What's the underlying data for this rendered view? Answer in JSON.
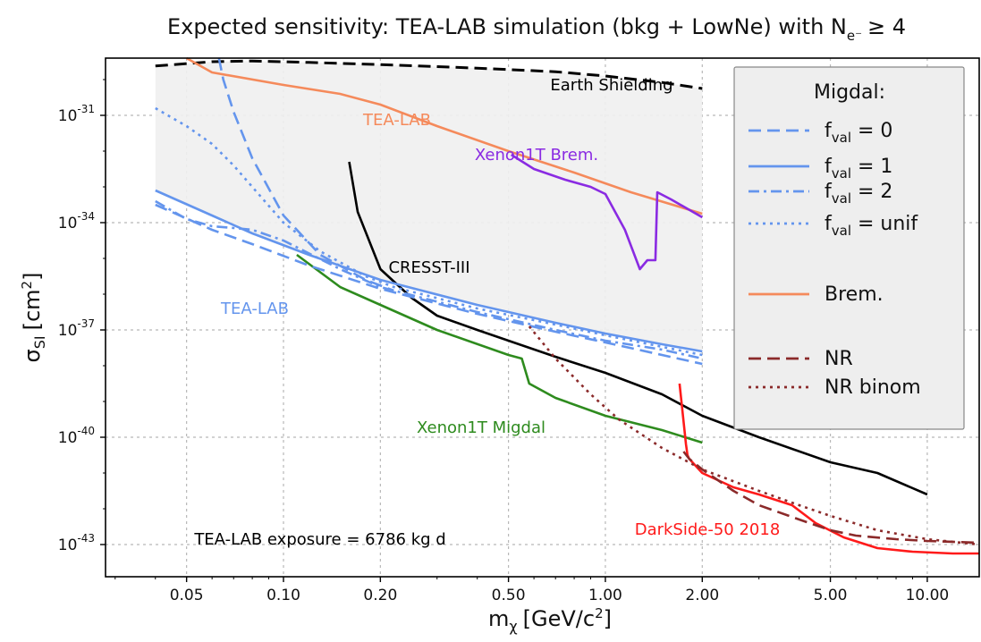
{
  "chart_data": {
    "type": "line",
    "title": "Expected sensitivity: TEA-LAB simulation (bkg + LowNe) with N",
    "title_subscript": "e⁻",
    "title_suffix": "≥ 4",
    "xlabel": "m",
    "xlabel_subscript": "χ",
    "xlabel_unit": "[GeV/c",
    "xlabel_unit_sup": "2",
    "xlabel_unit_close": "]",
    "ylabel": "σ",
    "ylabel_subscript": "SI",
    "ylabel_unit": "[cm",
    "ylabel_unit_sup": "2",
    "ylabel_unit_close": "]",
    "x_scale": "log",
    "y_scale": "log",
    "xlim": [
      0.028,
      14.5
    ],
    "ylim_log10": [
      -43.9,
      -29.4
    ],
    "grid": true,
    "x_ticks": [
      {
        "value": 0.05,
        "label": "0.05"
      },
      {
        "value": 0.1,
        "label": "0.10"
      },
      {
        "value": 0.2,
        "label": "0.20"
      },
      {
        "value": 0.5,
        "label": "0.50"
      },
      {
        "value": 1.0,
        "label": "1.00"
      },
      {
        "value": 2.0,
        "label": "2.00"
      },
      {
        "value": 5.0,
        "label": "5.00"
      },
      {
        "value": 10.0,
        "label": "10.00"
      }
    ],
    "y_ticks": [
      {
        "log10": -31,
        "base": "10",
        "exp": "-31"
      },
      {
        "log10": -34,
        "base": "10",
        "exp": "-34"
      },
      {
        "log10": -37,
        "base": "10",
        "exp": "-37"
      },
      {
        "log10": -40,
        "base": "10",
        "exp": "-40"
      },
      {
        "log10": -43,
        "base": "10",
        "exp": "-43"
      }
    ],
    "shaded_region": {
      "x": [
        0.04,
        2.0
      ],
      "upper_log10": [
        -29.6,
        -30.25
      ],
      "lower_series": "TEA-LAB Migdal fval=1"
    },
    "series": [
      {
        "id": "earth",
        "color": "#000000",
        "dash": "dashed",
        "x": [
          0.04,
          0.06,
          0.08,
          0.12,
          0.2,
          0.4,
          0.7,
          1.0,
          1.5,
          2.0
        ],
        "log10y": [
          -29.62,
          -29.5,
          -29.48,
          -29.52,
          -29.58,
          -29.68,
          -29.78,
          -29.9,
          -30.08,
          -30.25
        ]
      },
      {
        "id": "tealab-brem",
        "color": "#f58a5b",
        "dash": "solid",
        "x": [
          0.05,
          0.06,
          0.1,
          0.15,
          0.2,
          0.3,
          0.5,
          0.8,
          1.2,
          2.0
        ],
        "log10y": [
          -29.4,
          -29.8,
          -30.15,
          -30.4,
          -30.7,
          -31.3,
          -32.0,
          -32.6,
          -33.15,
          -33.75
        ]
      },
      {
        "id": "xenon1t-brem",
        "color": "#8a2be2",
        "dash": "solid",
        "x": [
          0.51,
          0.6,
          0.75,
          0.9,
          1.0,
          1.15,
          1.28,
          1.35,
          1.43,
          1.45,
          1.6,
          2.0
        ],
        "log10y": [
          -32.1,
          -32.5,
          -32.8,
          -33.0,
          -33.2,
          -34.2,
          -35.3,
          -35.05,
          -35.05,
          -33.15,
          -33.35,
          -33.85
        ]
      },
      {
        "id": "cresst",
        "color": "#000000",
        "dash": "solid",
        "x": [
          0.16,
          0.17,
          0.2,
          0.25,
          0.3,
          0.4,
          0.5,
          0.7,
          1.0,
          1.5,
          2.0,
          3.0,
          5.0,
          7.0,
          10.0
        ],
        "log10y": [
          -32.3,
          -33.7,
          -35.3,
          -36.1,
          -36.6,
          -37.0,
          -37.3,
          -37.75,
          -38.2,
          -38.8,
          -39.4,
          -40.0,
          -40.7,
          -41.0,
          -41.6
        ]
      },
      {
        "id": "xenon1t-migdal",
        "color": "#2e8b1e",
        "dash": "solid",
        "x": [
          0.11,
          0.15,
          0.2,
          0.3,
          0.5,
          0.55,
          0.58,
          0.7,
          1.0,
          1.5,
          2.0
        ],
        "log10y": [
          -34.9,
          -35.8,
          -36.3,
          -37.0,
          -37.7,
          -37.8,
          -38.5,
          -38.9,
          -39.4,
          -39.8,
          -40.15
        ]
      },
      {
        "id": "migdal-f1",
        "color": "#6495ed",
        "dash": "solid",
        "x": [
          0.04,
          0.06,
          0.08,
          0.12,
          0.2,
          0.4,
          0.7,
          1.0,
          1.5,
          2.0
        ],
        "log10y": [
          -33.1,
          -33.8,
          -34.3,
          -34.9,
          -35.6,
          -36.3,
          -36.8,
          -37.1,
          -37.4,
          -37.6
        ]
      },
      {
        "id": "migdal-f0",
        "color": "#6495ed",
        "dash": "dashed",
        "x": [
          0.04,
          0.06,
          0.08,
          0.12,
          0.2,
          0.4,
          0.7,
          1.0,
          1.5,
          2.0
        ],
        "log10y": [
          -33.5,
          -34.2,
          -34.6,
          -35.2,
          -35.85,
          -36.55,
          -37.05,
          -37.35,
          -37.7,
          -37.95
        ]
      },
      {
        "id": "migdal-f0-steep",
        "color": "#6495ed",
        "dash": "dashed",
        "x": [
          0.063,
          0.065,
          0.07,
          0.08,
          0.1,
          0.13,
          0.18,
          0.22
        ],
        "log10y": [
          -29.4,
          -30.0,
          -30.9,
          -32.2,
          -33.8,
          -34.9,
          -35.6,
          -35.9
        ]
      },
      {
        "id": "migdal-f2",
        "color": "#6495ed",
        "dash": "dashdot",
        "x": [
          0.04,
          0.05,
          0.06,
          0.07,
          0.08,
          0.1,
          0.15,
          0.2,
          0.4,
          0.7,
          1.0,
          1.5,
          2.0
        ],
        "log10y": [
          -33.4,
          -33.9,
          -34.1,
          -34.15,
          -34.2,
          -34.5,
          -35.3,
          -35.8,
          -36.5,
          -37.0,
          -37.3,
          -37.55,
          -37.8
        ]
      },
      {
        "id": "migdal-unif",
        "color": "#6495ed",
        "dash": "dotted",
        "x": [
          0.04,
          0.05,
          0.06,
          0.07,
          0.08,
          0.1,
          0.13,
          0.18,
          0.22,
          0.4,
          0.7,
          1.0,
          2.0
        ],
        "log10y": [
          -30.8,
          -31.3,
          -31.8,
          -32.4,
          -33.0,
          -34.0,
          -34.8,
          -35.5,
          -35.8,
          -36.4,
          -36.85,
          -37.15,
          -37.7
        ]
      },
      {
        "id": "darkside",
        "color": "#ff1a1a",
        "dash": "solid",
        "x": [
          1.7,
          1.78,
          1.8,
          1.82,
          2.0,
          2.5,
          3.0,
          3.8,
          4.5,
          5.5,
          7.0,
          9.0,
          12.0,
          14.5
        ],
        "log10y": [
          -38.5,
          -40.2,
          -40.5,
          -40.6,
          -41.0,
          -41.4,
          -41.6,
          -41.9,
          -42.4,
          -42.8,
          -43.1,
          -43.2,
          -43.25,
          -43.25
        ]
      },
      {
        "id": "nr",
        "color": "#8b2a2a",
        "dash": "dashed",
        "x": [
          1.75,
          1.82,
          2.0,
          2.5,
          3.0,
          4.0,
          5.0,
          6.0,
          8.0,
          10.0,
          14.5
        ],
        "log10y": [
          -40.4,
          -40.6,
          -40.9,
          -41.5,
          -41.9,
          -42.3,
          -42.6,
          -42.75,
          -42.85,
          -42.9,
          -42.95
        ]
      },
      {
        "id": "nr-binom",
        "color": "#8b2a2a",
        "dash": "dotted",
        "x": [
          0.58,
          0.7,
          0.9,
          1.1,
          1.5,
          2.0,
          3.0,
          4.0,
          5.0,
          7.0,
          10.0,
          14.5
        ],
        "log10y": [
          -36.9,
          -37.8,
          -38.8,
          -39.5,
          -40.3,
          -40.9,
          -41.5,
          -41.9,
          -42.2,
          -42.6,
          -42.85,
          -43.0
        ]
      }
    ],
    "annotations": [
      {
        "text": "Earth Shielding",
        "color": "#000000"
      },
      {
        "text": "TEA-LAB",
        "color": "#f58a5b"
      },
      {
        "text": "Xenon1T Brem.",
        "color": "#8a2be2"
      },
      {
        "text": "CRESST-III",
        "color": "#000000"
      },
      {
        "text": "TEA-LAB",
        "color": "#6495ed"
      },
      {
        "text": "Xenon1T Migdal",
        "color": "#2e8b1e"
      },
      {
        "text": "DarkSide-50 2018",
        "color": "#ff1a1a"
      },
      {
        "text": "TEA-LAB exposure = 6786 kg d",
        "color": "#000000"
      }
    ],
    "legend": {
      "placement": "upper-right",
      "title": "Migdal:",
      "entries": [
        {
          "prefix": "f",
          "sub": "val",
          "suffix": " = 0",
          "color": "#6495ed",
          "dash": "dashed"
        },
        {
          "prefix": "f",
          "sub": "val",
          "suffix": " = 1",
          "color": "#6495ed",
          "dash": "solid"
        },
        {
          "prefix": "f",
          "sub": "val",
          "suffix": " = 2",
          "color": "#6495ed",
          "dash": "dashdot"
        },
        {
          "prefix": "f",
          "sub": "val",
          "suffix": " = unif",
          "color": "#6495ed",
          "dash": "dotted"
        },
        {
          "prefix": "Brem.",
          "sub": "",
          "suffix": "",
          "color": "#f58a5b",
          "dash": "solid"
        },
        {
          "prefix": "NR",
          "sub": "",
          "suffix": "",
          "color": "#8b2a2a",
          "dash": "dashed"
        },
        {
          "prefix": "NR binom",
          "sub": "",
          "suffix": "",
          "color": "#8b2a2a",
          "dash": "dotted"
        }
      ]
    }
  }
}
